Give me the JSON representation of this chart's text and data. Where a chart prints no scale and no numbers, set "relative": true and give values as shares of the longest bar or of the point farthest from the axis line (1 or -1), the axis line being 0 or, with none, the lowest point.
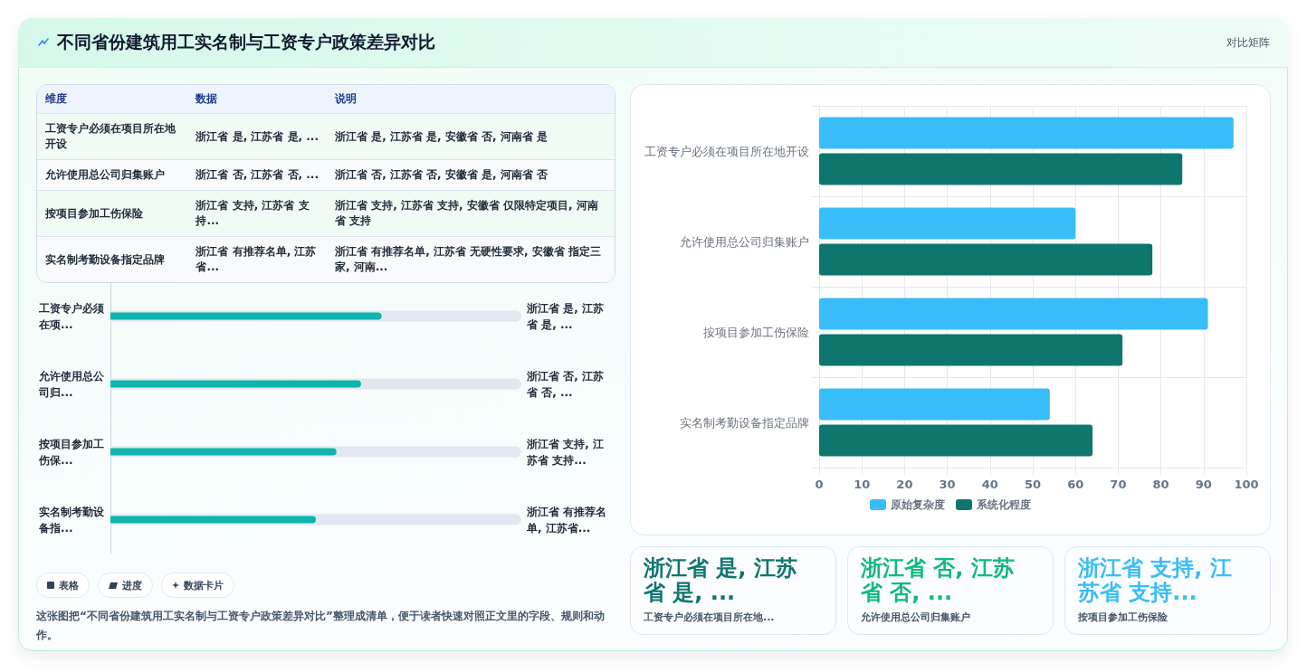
{
  "chart_data": [
    {
      "type": "other",
      "title": "不同省份建筑用工实名制与工资专户政策差异对比",
      "annotations": [
        "对比矩阵"
      ]
    },
    {
      "type": "other",
      "annotations": [
        "维度",
        "数据",
        "说明",
        "工资专户必须在项目所在地开设",
        "浙江省 是, 江苏省 是, ...",
        "浙江省 是, 江苏省 是, 安徽省 否, 河南省 是",
        "允许使用总公司归集账户",
        "浙江省 否, 江苏省 否, ...",
        "浙江省 否, 江苏省 否, 安徽省 是, 河南省 否",
        "按项目参加工伤保险",
        "浙江省 支持, 江苏省 支持...",
        "浙江省 支持, 江苏省 支持, 安徽省 仅限特定项目, 河南省 支持",
        "实名制考勤设备指定品牌",
        "浙江省 有推荐名单, 江苏省...",
        "浙江省 有推荐名单, 江苏省 无硬性要求, 安徽省 指定三家, 河南..."
      ]
    },
    {
      "type": "bar",
      "orientation": "horizontal",
      "relative": true,
      "categories": [
        "工资专户必须在项...",
        "允许使用总公司归...",
        "按项目参加工伤保...",
        "实名制考勤设备指..."
      ],
      "series": [
        {
          "color": "#e2e8f0",
          "values": [
            1,
            1,
            1,
            1
          ]
        },
        {
          "color": "#0db5ad",
          "values": [
            0.66,
            0.61,
            0.55,
            0.5
          ]
        }
      ],
      "annotations": [
        "浙江省 是, 江苏省 是, ...",
        "浙江省 否, 江苏省 否, ...",
        "浙江省 支持, 江苏省 支持...",
        "浙江省 有推荐名单, 江苏省..."
      ]
    },
    {
      "type": "other",
      "annotations": [
        "表格",
        "进度",
        "数据卡片",
        "这张图把“不同省份建筑用工实名制与工资专户政策差异对比”整理成清单，便于读者快速对照正文里的字段、规则和动作。"
      ]
    },
    {
      "type": "bar",
      "orientation": "horizontal",
      "categories": [
        "工资专户必须在项目所在地开设",
        "允许使用总公司归集账户",
        "按项目参加工伤保险",
        "实名制考勤设备指定品牌"
      ],
      "series": [
        {
          "name": "原始复杂度",
          "color": "#38bdf8",
          "values": [
            97,
            60,
            91,
            54
          ]
        },
        {
          "name": "系统化程度",
          "color": "#0f766e",
          "values": [
            85,
            78,
            71,
            64
          ]
        }
      ],
      "xlim": [
        0,
        100
      ],
      "xticks": [
        0,
        10,
        20,
        30,
        40,
        50,
        60,
        70,
        80,
        90,
        100
      ],
      "grid": true,
      "legend": "bottom"
    },
    {
      "type": "other",
      "annotations": [
        "浙江省 是, 江苏省 是, ...",
        "工资专户必须在项目所在地...",
        "浙江省 否, 江苏省 否, ...",
        "允许使用总公司归集账户",
        "浙江省 支持, 江苏省 支持...",
        "按项目参加工伤保险"
      ],
      "colors": [
        "#0f766e",
        "#10b981",
        "#38bdf8"
      ]
    }
  ]
}
